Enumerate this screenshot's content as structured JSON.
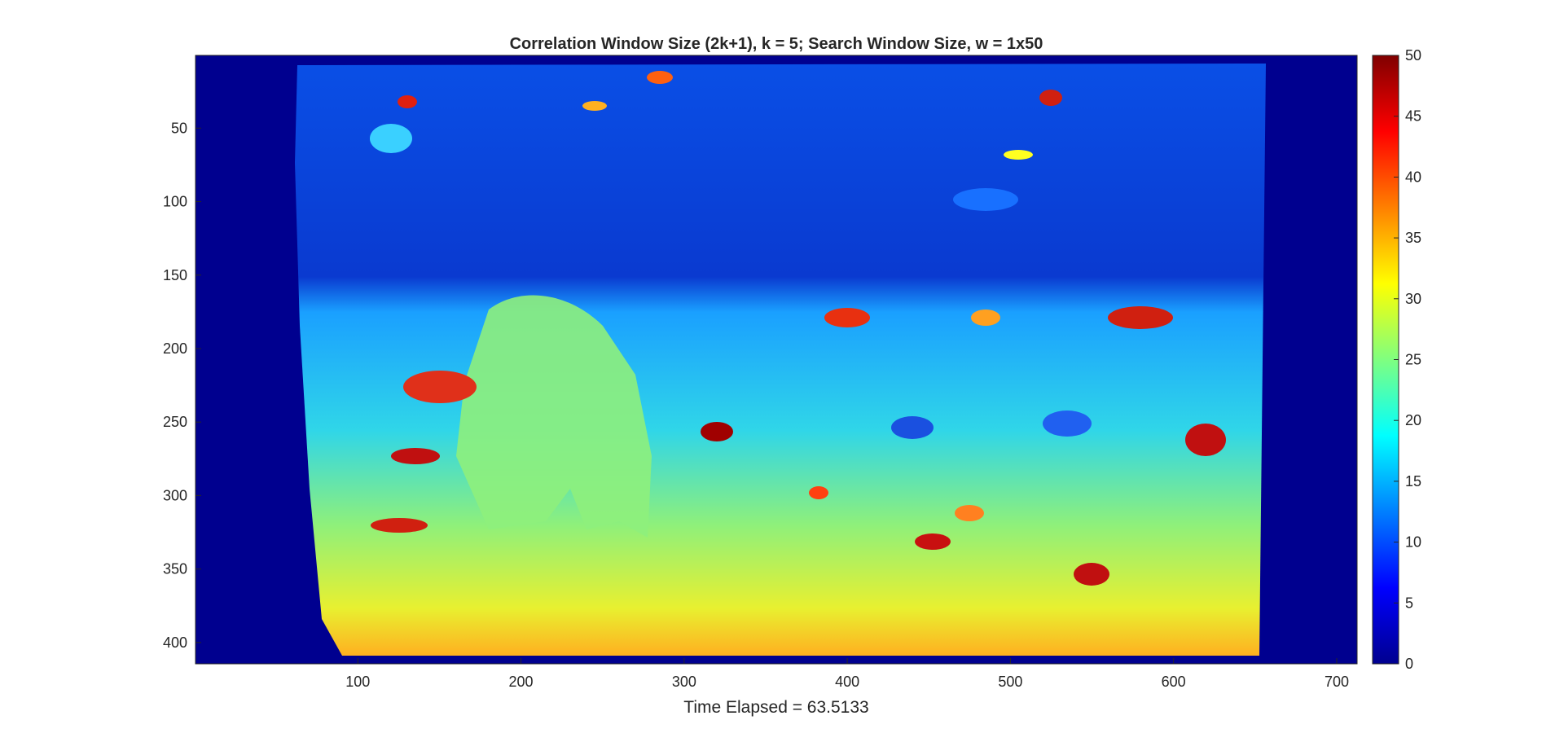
{
  "chart_data": {
    "type": "heatmap",
    "title": "Correlation Window Size (2k+1), k = 5; Search Window Size, w = 1x50",
    "xlabel": "Time Elapsed = 63.5133",
    "ylabel": "",
    "xlim": [
      0.5,
      712.5
    ],
    "ylim": [
      0.5,
      414.5
    ],
    "y_reversed": true,
    "x_ticks": [
      100,
      200,
      300,
      400,
      500,
      600,
      700
    ],
    "y_ticks": [
      50,
      100,
      150,
      200,
      250,
      300,
      350,
      400
    ],
    "x_tick_labels": [
      "100",
      "200",
      "300",
      "400",
      "500",
      "600",
      "700"
    ],
    "y_tick_labels": [
      "50",
      "100",
      "150",
      "200",
      "250",
      "300",
      "350",
      "400"
    ],
    "colormap": "jet",
    "clim": [
      0,
      50
    ],
    "colorbar_ticks": [
      0,
      5,
      10,
      15,
      20,
      25,
      30,
      35,
      40,
      45,
      50
    ],
    "colorbar_tick_labels": [
      "0",
      "5",
      "10",
      "15",
      "20",
      "25",
      "30",
      "35",
      "40",
      "45",
      "50"
    ],
    "colorbar_location": "right",
    "grid": false
  }
}
